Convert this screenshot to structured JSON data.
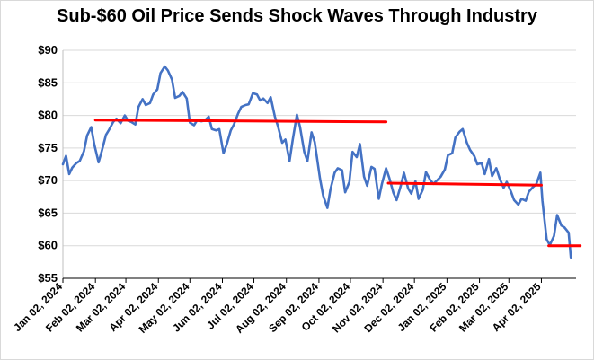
{
  "chart_data": {
    "type": "line",
    "title": "Sub-$60 Oil Price Sends Shock Waves Through Industry",
    "xlabel": "",
    "ylabel": "",
    "ylim": [
      55,
      90
    ],
    "y_ticks": [
      "$55",
      "$60",
      "$65",
      "$70",
      "$75",
      "$80",
      "$85",
      "$90"
    ],
    "y_tick_values": [
      55,
      60,
      65,
      70,
      75,
      80,
      85,
      90
    ],
    "x_ticks": [
      "Jan 02, 2024",
      "Feb 02, 2024",
      "Mar 02, 2024",
      "Apr 02, 2024",
      "May 02, 2024",
      "Jun 02, 2024",
      "Jul 02, 2024",
      "Aug 02, 2024",
      "Sep 02, 2024",
      "Oct 02, 2024",
      "Nov 02, 2024",
      "Dec 02, 2024",
      "Jan 02, 2025",
      "Feb 02, 2025",
      "Mar 02, 2025",
      "Apr 02, 2025"
    ],
    "grid": "horizontal",
    "legend": "none",
    "series": [
      {
        "color": "#4472C4",
        "points": [
          [
            "2024-01-02",
            72.5
          ],
          [
            "2024-01-05",
            73.8
          ],
          [
            "2024-01-08",
            71.0
          ],
          [
            "2024-01-11",
            72.0
          ],
          [
            "2024-01-15",
            72.7
          ],
          [
            "2024-01-18",
            73.0
          ],
          [
            "2024-01-22",
            74.5
          ],
          [
            "2024-01-25",
            76.9
          ],
          [
            "2024-01-29",
            78.2
          ],
          [
            "2024-02-01",
            75.5
          ],
          [
            "2024-02-05",
            72.8
          ],
          [
            "2024-02-08",
            74.5
          ],
          [
            "2024-02-12",
            77.0
          ],
          [
            "2024-02-15",
            77.8
          ],
          [
            "2024-02-19",
            79.0
          ],
          [
            "2024-02-22",
            79.5
          ],
          [
            "2024-02-26",
            78.8
          ],
          [
            "2024-03-01",
            80.0
          ],
          [
            "2024-03-04",
            79.2
          ],
          [
            "2024-03-07",
            79.0
          ],
          [
            "2024-03-11",
            78.6
          ],
          [
            "2024-03-14",
            81.3
          ],
          [
            "2024-03-18",
            82.5
          ],
          [
            "2024-03-21",
            81.6
          ],
          [
            "2024-03-25",
            81.9
          ],
          [
            "2024-03-28",
            83.2
          ],
          [
            "2024-04-01",
            84.0
          ],
          [
            "2024-04-04",
            86.5
          ],
          [
            "2024-04-08",
            87.5
          ],
          [
            "2024-04-11",
            86.9
          ],
          [
            "2024-04-15",
            85.5
          ],
          [
            "2024-04-18",
            82.7
          ],
          [
            "2024-04-22",
            83.0
          ],
          [
            "2024-04-25",
            83.6
          ],
          [
            "2024-04-29",
            82.6
          ],
          [
            "2024-05-02",
            78.9
          ],
          [
            "2024-05-06",
            78.5
          ],
          [
            "2024-05-09",
            79.3
          ],
          [
            "2024-05-13",
            79.1
          ],
          [
            "2024-05-16",
            79.2
          ],
          [
            "2024-05-20",
            79.8
          ],
          [
            "2024-05-23",
            77.9
          ],
          [
            "2024-05-27",
            77.7
          ],
          [
            "2024-05-30",
            77.9
          ],
          [
            "2024-06-03",
            74.2
          ],
          [
            "2024-06-06",
            75.5
          ],
          [
            "2024-06-10",
            77.7
          ],
          [
            "2024-06-13",
            78.6
          ],
          [
            "2024-06-17",
            80.3
          ],
          [
            "2024-06-20",
            81.3
          ],
          [
            "2024-06-24",
            81.6
          ],
          [
            "2024-06-27",
            81.7
          ],
          [
            "2024-07-01",
            83.4
          ],
          [
            "2024-07-05",
            83.2
          ],
          [
            "2024-07-08",
            82.3
          ],
          [
            "2024-07-11",
            82.6
          ],
          [
            "2024-07-15",
            81.9
          ],
          [
            "2024-07-18",
            82.8
          ],
          [
            "2024-07-22",
            79.8
          ],
          [
            "2024-07-25",
            78.3
          ],
          [
            "2024-07-29",
            75.8
          ],
          [
            "2024-08-01",
            76.3
          ],
          [
            "2024-08-05",
            73.0
          ],
          [
            "2024-08-08",
            76.2
          ],
          [
            "2024-08-12",
            80.1
          ],
          [
            "2024-08-15",
            78.2
          ],
          [
            "2024-08-19",
            74.4
          ],
          [
            "2024-08-22",
            73.0
          ],
          [
            "2024-08-26",
            77.4
          ],
          [
            "2024-08-29",
            75.9
          ],
          [
            "2024-09-03",
            70.3
          ],
          [
            "2024-09-06",
            67.7
          ],
          [
            "2024-09-10",
            65.8
          ],
          [
            "2024-09-13",
            68.7
          ],
          [
            "2024-09-17",
            71.2
          ],
          [
            "2024-09-20",
            71.9
          ],
          [
            "2024-09-24",
            71.6
          ],
          [
            "2024-09-27",
            68.2
          ],
          [
            "2024-10-01",
            69.8
          ],
          [
            "2024-10-04",
            74.4
          ],
          [
            "2024-10-08",
            73.6
          ],
          [
            "2024-10-11",
            75.6
          ],
          [
            "2024-10-15",
            70.6
          ],
          [
            "2024-10-18",
            69.2
          ],
          [
            "2024-10-22",
            72.1
          ],
          [
            "2024-10-25",
            71.8
          ],
          [
            "2024-10-29",
            67.2
          ],
          [
            "2024-11-01",
            69.5
          ],
          [
            "2024-11-05",
            71.9
          ],
          [
            "2024-11-08",
            70.4
          ],
          [
            "2024-11-12",
            68.1
          ],
          [
            "2024-11-15",
            67.0
          ],
          [
            "2024-11-19",
            69.2
          ],
          [
            "2024-11-22",
            71.2
          ],
          [
            "2024-11-26",
            68.8
          ],
          [
            "2024-11-29",
            68.0
          ],
          [
            "2024-12-03",
            69.9
          ],
          [
            "2024-12-06",
            67.2
          ],
          [
            "2024-12-10",
            68.6
          ],
          [
            "2024-12-13",
            71.3
          ],
          [
            "2024-12-17",
            70.1
          ],
          [
            "2024-12-20",
            69.5
          ],
          [
            "2024-12-24",
            70.1
          ],
          [
            "2024-12-27",
            70.6
          ],
          [
            "2024-12-31",
            71.7
          ],
          [
            "2025-01-03",
            73.9
          ],
          [
            "2025-01-07",
            74.2
          ],
          [
            "2025-01-10",
            76.6
          ],
          [
            "2025-01-14",
            77.5
          ],
          [
            "2025-01-17",
            77.9
          ],
          [
            "2025-01-21",
            75.8
          ],
          [
            "2025-01-24",
            74.7
          ],
          [
            "2025-01-28",
            73.8
          ],
          [
            "2025-01-31",
            72.5
          ],
          [
            "2025-02-04",
            72.7
          ],
          [
            "2025-02-07",
            71.0
          ],
          [
            "2025-02-11",
            73.3
          ],
          [
            "2025-02-14",
            70.7
          ],
          [
            "2025-02-18",
            71.9
          ],
          [
            "2025-02-21",
            70.4
          ],
          [
            "2025-02-25",
            68.9
          ],
          [
            "2025-02-28",
            69.8
          ],
          [
            "2025-03-04",
            68.3
          ],
          [
            "2025-03-07",
            67.0
          ],
          [
            "2025-03-11",
            66.3
          ],
          [
            "2025-03-14",
            67.2
          ],
          [
            "2025-03-18",
            66.9
          ],
          [
            "2025-03-21",
            68.3
          ],
          [
            "2025-03-25",
            69.0
          ],
          [
            "2025-03-28",
            69.4
          ],
          [
            "2025-04-01",
            71.2
          ],
          [
            "2025-04-03",
            66.9
          ],
          [
            "2025-04-07",
            61.0
          ],
          [
            "2025-04-10",
            60.1
          ],
          [
            "2025-04-14",
            61.5
          ],
          [
            "2025-04-17",
            64.7
          ],
          [
            "2025-04-21",
            63.1
          ],
          [
            "2025-04-24",
            62.8
          ],
          [
            "2025-04-28",
            62.0
          ],
          [
            "2025-04-30",
            58.2
          ]
        ]
      },
      {
        "color": "#FF0000",
        "points": [
          [
            "2024-02-02",
            79.3
          ],
          [
            "2024-11-05",
            79.0
          ]
        ]
      },
      {
        "color": "#FF0000",
        "points": [
          [
            "2024-11-07",
            69.6
          ],
          [
            "2025-04-02",
            69.3
          ]
        ]
      },
      {
        "color": "#FF0000",
        "points": [
          [
            "2025-04-09",
            60.0
          ],
          [
            "2025-05-09",
            60.0
          ]
        ]
      }
    ]
  }
}
